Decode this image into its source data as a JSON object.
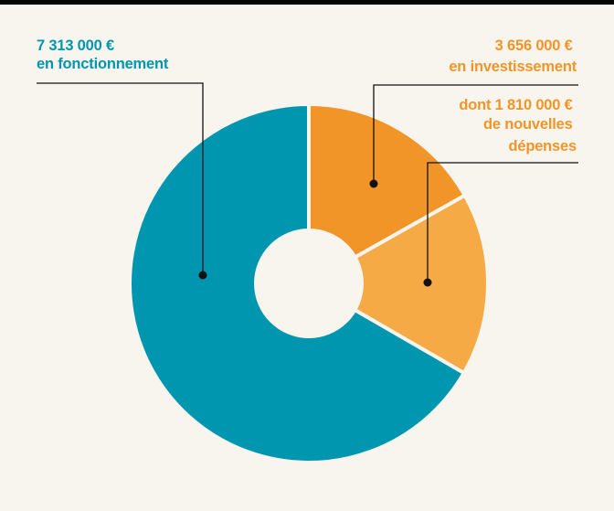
{
  "chart_data": {
    "type": "pie",
    "donut": true,
    "slices": [
      {
        "value": 7313000,
        "color": "#0096b0",
        "label_lines": [
          "7 313 000 €",
          "en fonctionnement"
        ]
      },
      {
        "value": 1846000,
        "color": "#f29528",
        "label_lines": [
          "3 656 000 €",
          "en investissement"
        ]
      },
      {
        "value": 1810000,
        "color": "#f6aa45",
        "label_lines": [
          "dont 1 810 000 €",
          "de nouvelles",
          "dépenses"
        ]
      }
    ],
    "colors": {
      "background": "#f8f5ee",
      "separator": "#f8f5ee",
      "leader": "#111111"
    }
  }
}
